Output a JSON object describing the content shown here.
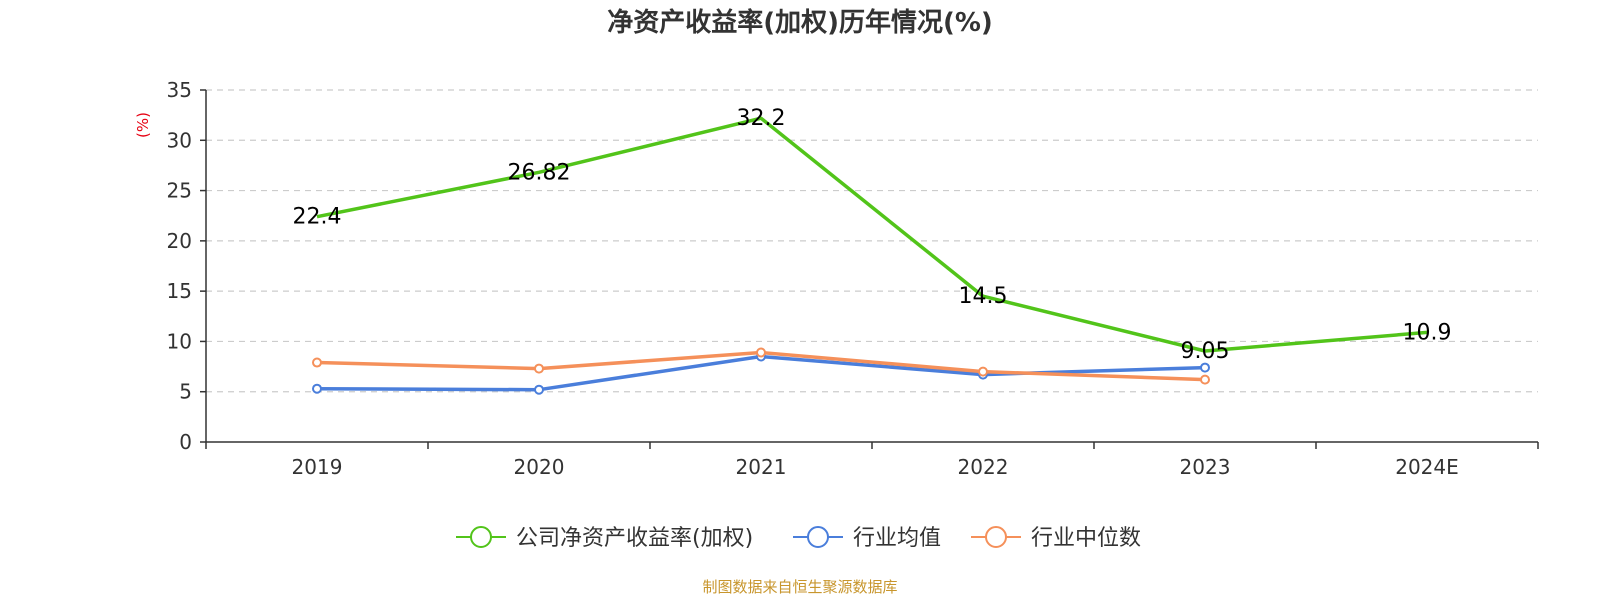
{
  "chart_data": {
    "type": "line",
    "title": "净资产收益率(加权)历年情况(%)",
    "ylabel": "(%)",
    "xlabel": "",
    "categories": [
      "2019",
      "2020",
      "2021",
      "2022",
      "2023",
      "2024E"
    ],
    "ylim": [
      0,
      35
    ],
    "yticks": [
      0,
      5,
      10,
      15,
      20,
      25,
      30,
      35
    ],
    "grid": true,
    "legend_position": "bottom",
    "series": [
      {
        "name": "公司净资产收益率(加权)",
        "color": "#52c41a",
        "values": [
          22.4,
          26.82,
          32.2,
          14.5,
          9.05,
          10.9
        ],
        "labels": [
          "22.4",
          "26.82",
          "32.2",
          "14.5",
          "9.05",
          "10.9"
        ],
        "show_labels": true,
        "show_markers": false
      },
      {
        "name": "行业均值",
        "color": "#4a7edb",
        "values": [
          5.3,
          5.2,
          8.5,
          6.7,
          7.4,
          null
        ],
        "show_labels": false,
        "show_markers": true
      },
      {
        "name": "行业中位数",
        "color": "#f5905a",
        "values": [
          7.9,
          7.3,
          8.9,
          7.0,
          6.2,
          null
        ],
        "show_labels": false,
        "show_markers": true
      }
    ]
  },
  "source": "制图数据来自恒生聚源数据库"
}
